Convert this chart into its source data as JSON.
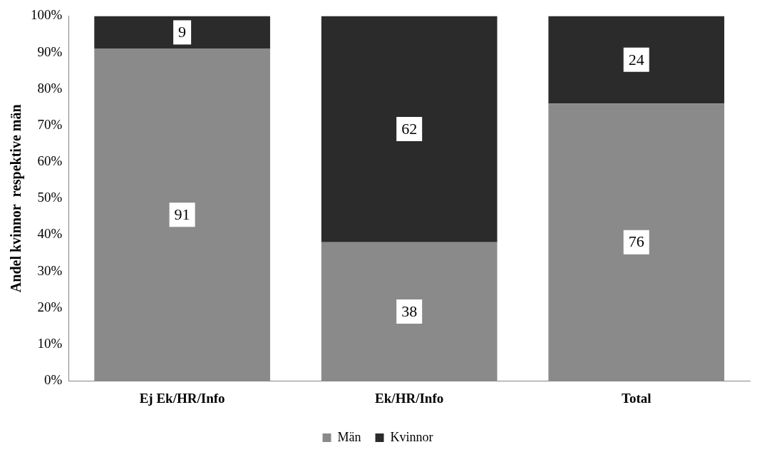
{
  "chart_data": {
    "type": "bar",
    "stacked": true,
    "ylabel": "Andel kvinnor  respektive män",
    "categories": [
      "Ej Ek/HR/Info",
      "Ek/HR/Info",
      "Total"
    ],
    "series": [
      {
        "name": "Män",
        "color": "#8a8a8a",
        "values": [
          91,
          38,
          76
        ]
      },
      {
        "name": "Kvinnor",
        "color": "#2b2b2b",
        "values": [
          9,
          62,
          24
        ]
      }
    ],
    "ylim": [
      0,
      100
    ],
    "yticks": [
      {
        "value": 0,
        "label": "0%"
      },
      {
        "value": 10,
        "label": "10%"
      },
      {
        "value": 20,
        "label": "20%"
      },
      {
        "value": 30,
        "label": "30%"
      },
      {
        "value": 40,
        "label": "40%"
      },
      {
        "value": 50,
        "label": "50%"
      },
      {
        "value": 60,
        "label": "60%"
      },
      {
        "value": 70,
        "label": "70%"
      },
      {
        "value": 80,
        "label": "80%"
      },
      {
        "value": 90,
        "label": "90%"
      },
      {
        "value": 100,
        "label": "100%"
      }
    ],
    "grid": false,
    "legend": "bottom",
    "data_labels": true
  }
}
